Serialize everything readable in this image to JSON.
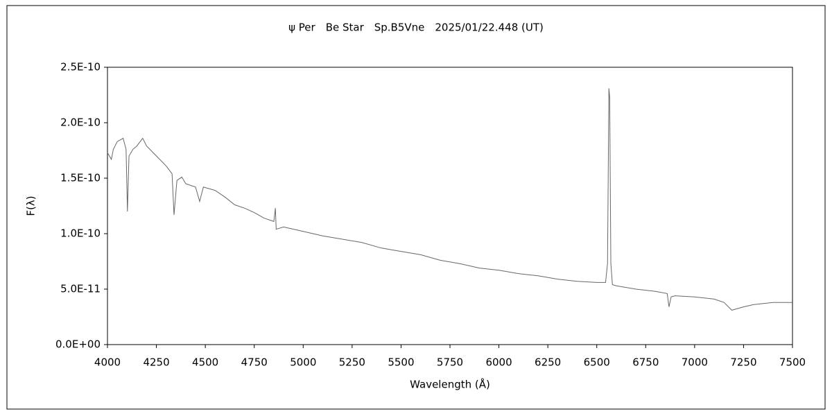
{
  "chart_data": {
    "type": "line",
    "title": "ψ Per　Be Star　Sp.B5Vne　2025/01/22.448 (UT)",
    "x_label": "Wavelength (Å)",
    "y_label": "F(λ)",
    "xlim": [
      4000,
      7500
    ],
    "xticks": [
      4000,
      4250,
      4500,
      4750,
      5000,
      5250,
      5500,
      5750,
      6000,
      6250,
      6500,
      6750,
      7000,
      7250,
      7500
    ],
    "ylim": [
      0,
      2.5e-10
    ],
    "yticks": [
      {
        "value": 0,
        "label": "0.0E+00"
      },
      {
        "value": 5e-11,
        "label": "5.0E-11"
      },
      {
        "value": 1e-10,
        "label": "1.0E-10"
      },
      {
        "value": 1.5e-10,
        "label": "1.5E-10"
      },
      {
        "value": 2e-10,
        "label": "2.0E-10"
      },
      {
        "value": 2.5e-10,
        "label": "2.5E-10"
      }
    ],
    "grid": false,
    "series": [
      {
        "color": "#666666",
        "x": [
          4000,
          4020,
          4030,
          4050,
          4080,
          4095,
          4102,
          4110,
          4130,
          4150,
          4180,
          4200,
          4250,
          4300,
          4330,
          4340,
          4355,
          4380,
          4400,
          4450,
          4471,
          4490,
          4550,
          4600,
          4650,
          4700,
          4750,
          4800,
          4850,
          4858,
          4862,
          4900,
          5000,
          5100,
          5200,
          5300,
          5400,
          5500,
          5600,
          5700,
          5800,
          5900,
          6000,
          6100,
          6200,
          6300,
          6400,
          6500,
          6545,
          6555,
          6562,
          6566,
          6572,
          6580,
          6600,
          6700,
          6800,
          6860,
          6869,
          6880,
          6900,
          7000,
          7100,
          7150,
          7190,
          7250,
          7300,
          7400,
          7500
        ],
        "values": [
          1.73e-10,
          1.67e-10,
          1.76e-10,
          1.83e-10,
          1.86e-10,
          1.76e-10,
          1.2e-10,
          1.7e-10,
          1.76e-10,
          1.79e-10,
          1.86e-10,
          1.79e-10,
          1.7e-10,
          1.61e-10,
          1.54e-10,
          1.17e-10,
          1.48e-10,
          1.51e-10,
          1.45e-10,
          1.42e-10,
          1.29e-10,
          1.42e-10,
          1.39e-10,
          1.33e-10,
          1.26e-10,
          1.23e-10,
          1.19e-10,
          1.14e-10,
          1.11e-10,
          1.23e-10,
          1.04e-10,
          1.06e-10,
          1.02e-10,
          9.8e-11,
          9.5e-11,
          9.2e-11,
          8.7e-11,
          8.4e-11,
          8.1e-11,
          7.6e-11,
          7.3e-11,
          6.9e-11,
          6.7e-11,
          6.4e-11,
          6.2e-11,
          5.9e-11,
          5.7e-11,
          5.6e-11,
          5.6e-11,
          7.3e-11,
          2.31e-10,
          2.23e-10,
          7.3e-11,
          5.4e-11,
          5.3e-11,
          5e-11,
          4.8e-11,
          4.6e-11,
          3.4e-11,
          4.3e-11,
          4.4e-11,
          4.3e-11,
          4.1e-11,
          3.8e-11,
          3.1e-11,
          3.4e-11,
          3.6e-11,
          3.8e-11,
          3.8e-11
        ]
      }
    ]
  }
}
